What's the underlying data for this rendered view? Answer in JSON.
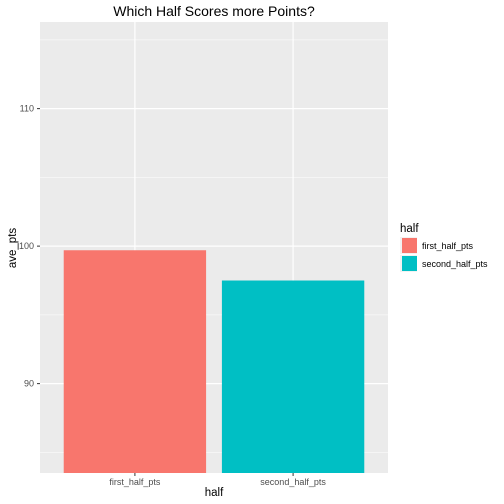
{
  "chart_data": {
    "type": "bar",
    "title": "Which Half Scores more Points?",
    "xlabel": "half",
    "ylabel": "ave_pts",
    "categories": [
      "first_half_pts",
      "second_half_pts"
    ],
    "values": [
      99.7,
      97.5
    ],
    "colors": [
      "#F8766D",
      "#00BFC4"
    ],
    "ylim": [
      83.5,
      116.3
    ],
    "yticks": [
      90,
      100,
      110
    ],
    "grid": true,
    "panel_background": "#EBEBEB",
    "legend": {
      "title": "half",
      "placement": "right",
      "entries": [
        "first_half_pts",
        "second_half_pts"
      ]
    }
  }
}
